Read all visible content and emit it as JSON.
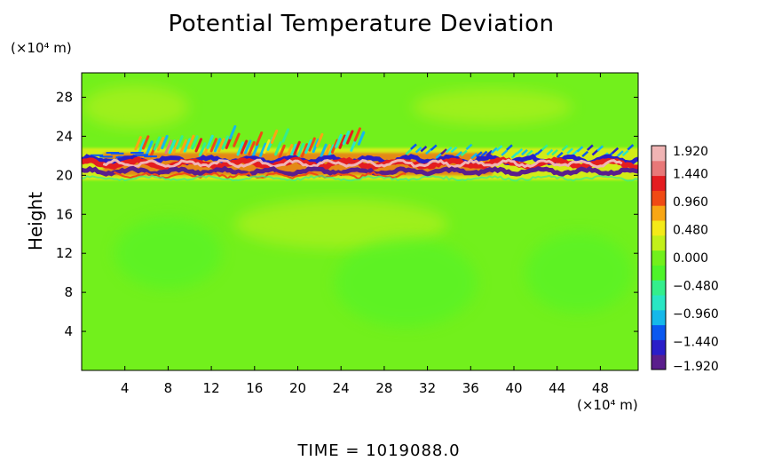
{
  "chart_data": {
    "type": "heatmap",
    "title": "Potential Temperature Deviation",
    "ylabel": "Height",
    "xlabel": "",
    "x_unit": "(×10⁴ m)",
    "y_unit": "(×10⁴ m)",
    "footer": "TIME  =  1019088.0",
    "xlim": [
      0,
      51.5
    ],
    "ylim": [
      0,
      30.5
    ],
    "x_ticks": [
      4,
      8,
      12,
      16,
      20,
      24,
      28,
      32,
      36,
      40,
      44,
      48
    ],
    "y_ticks": [
      4,
      8,
      12,
      16,
      20,
      24,
      28
    ],
    "colorbar": {
      "min": -1.92,
      "max": 1.92,
      "tick_values": [
        1.92,
        1.44,
        0.96,
        0.48,
        0.0,
        -0.48,
        -0.96,
        -1.44,
        -1.92
      ],
      "tick_labels": [
        "1.920",
        "1.440",
        "0.960",
        "0.480",
        "0.000",
        "−0.480",
        "−0.960",
        "−1.440",
        "−1.920"
      ],
      "colors": [
        "#5a1e8c",
        "#2a1ec8",
        "#0a58f0",
        "#15b8ea",
        "#2ae6c4",
        "#34ee8c",
        "#4ef42a",
        "#72f01c",
        "#c2f01a",
        "#f4ea18",
        "#f8a614",
        "#f04a14",
        "#e41c20",
        "#e87878",
        "#f0b4b4"
      ]
    },
    "background_value": 0.0,
    "features": [
      {
        "name": "wave-layer-cold",
        "x_range": [
          0,
          51.5
        ],
        "y": 20.4,
        "value": -1.92
      },
      {
        "name": "wave-layer-warm",
        "x_range": [
          0,
          51.5
        ],
        "y": 21.2,
        "value": 1.92
      },
      {
        "name": "wave-layer-cold-upper",
        "x_range": [
          0,
          51.5
        ],
        "y": 21.6,
        "value": -1.6
      },
      {
        "name": "wave-crests-upper",
        "x_range": [
          5,
          26
        ],
        "y": 23.5,
        "value": 0.96
      }
    ]
  }
}
